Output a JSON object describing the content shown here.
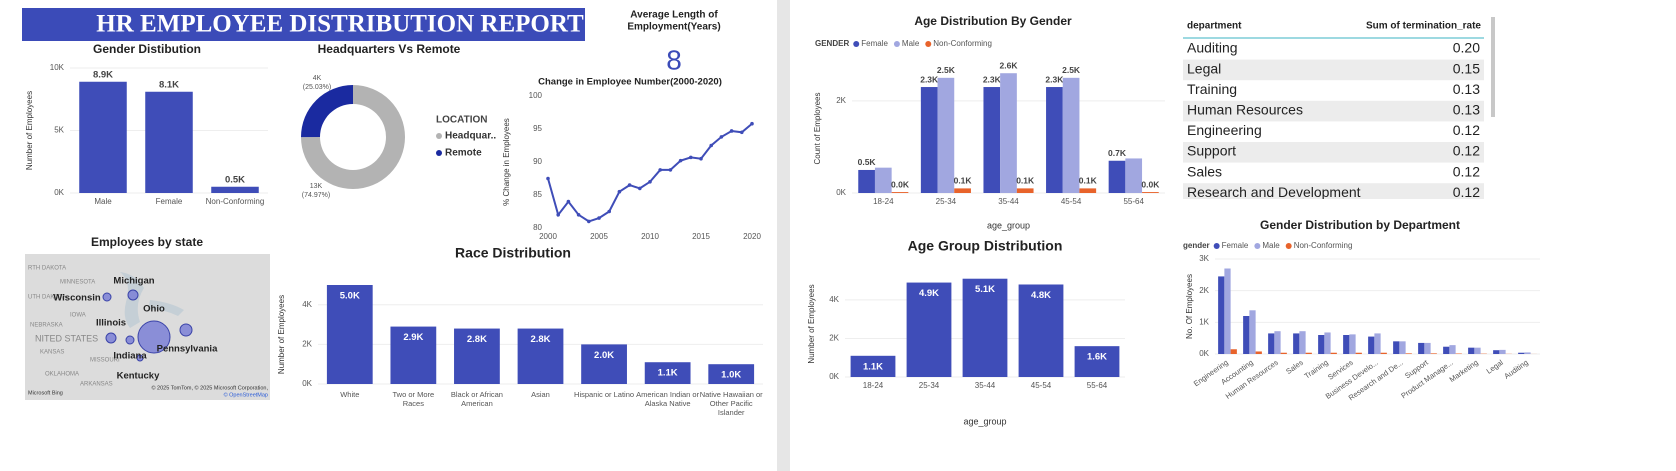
{
  "report_title": "HR EMPLOYEE DISTRIBUTION REPORT",
  "kpi": {
    "title_lines": [
      "Average Length of",
      "Employment(Years)"
    ],
    "value": 8
  },
  "map": {
    "title": "Employees by state",
    "region_labels": [
      "RTH DAKOTA",
      "MINNESOTA",
      "UTH DAKOTA",
      "NEBRASKA",
      "IOWA",
      "NITED STATES",
      "KANSAS",
      "MISSOURI",
      "OKLAHOMA",
      "ARKANSAS"
    ],
    "state_labels": [
      "Michigan",
      "Wisconsin",
      "Ohio",
      "Illinois",
      "Indiana",
      "Pennsylvania",
      "Kentucky"
    ],
    "attribution": "© 2025 TomTom, © 2025 Microsoft Corporation,",
    "osm": "© OpenStreetMap",
    "logo": "Microsoft Bing"
  },
  "table": {
    "header": [
      "department",
      "Sum of termination_rate"
    ],
    "rows": [
      [
        "Auditing",
        "0.20"
      ],
      [
        "Legal",
        "0.15"
      ],
      [
        "Training",
        "0.13"
      ],
      [
        "Human Resources",
        "0.13"
      ],
      [
        "Engineering",
        "0.12"
      ],
      [
        "Support",
        "0.12"
      ],
      [
        "Sales",
        "0.12"
      ],
      [
        "Research and Development",
        "0.12"
      ]
    ]
  },
  "chart_data": [
    {
      "type": "bar",
      "title": "Gender Distibution",
      "y_label": "Number of Employees",
      "categories": [
        "Male",
        "Female",
        "Non-Conforming"
      ],
      "values": [
        8900,
        8100,
        500
      ],
      "value_labels": [
        "8.9K",
        "8.1K",
        "0.5K"
      ],
      "color": "#3f4db8",
      "ylim": [
        0,
        10000
      ],
      "yticks": [
        {
          "value": 0,
          "label": "0K"
        },
        {
          "value": 5000,
          "label": "5K"
        },
        {
          "value": 10000,
          "label": "10K"
        }
      ],
      "grid": true
    },
    {
      "type": "donut",
      "title": "Headquarters Vs Remote",
      "legend_title": "LOCATION",
      "categories": [
        "Headquar..",
        "Remote"
      ],
      "values": [
        74.97,
        25.03
      ],
      "value_labels": [
        "(74.97%)",
        "(25.03%)"
      ],
      "count_labels": [
        "13K",
        "4K"
      ],
      "colors": [
        "#b3b3b3",
        "#1a2aa0"
      ]
    },
    {
      "type": "line",
      "title": "Change in Employee Number(2000-2020)",
      "y_label": "% Change in Employees",
      "x": [
        2000,
        2001,
        2002,
        2003,
        2004,
        2005,
        2006,
        2007,
        2008,
        2009,
        2010,
        2011,
        2012,
        2013,
        2014,
        2015,
        2016,
        2017,
        2018,
        2019,
        2020
      ],
      "values": [
        87.5,
        82,
        84,
        82,
        81,
        81.5,
        82.5,
        85.5,
        86.5,
        86,
        87,
        88.8,
        88.8,
        90.2,
        90.7,
        90.5,
        92.5,
        93.8,
        94.7,
        94.5,
        95.8
      ],
      "color": "#3f4db8",
      "xlim": [
        2000,
        2020
      ],
      "xticks": [
        2000,
        2005,
        2010,
        2015,
        2020
      ],
      "ylim": [
        80,
        100
      ],
      "yticks": [
        80,
        85,
        90,
        95,
        100
      ]
    },
    {
      "type": "bar",
      "title": "Race Distribution",
      "y_label": "Number of Employees",
      "categories": [
        "White",
        "Two or More Races",
        "Black or African American",
        "Asian",
        "Hispanic or Latino",
        "American Indian or Alaska Native",
        "Native Hawaiian or Other Pacific Islander"
      ],
      "values": [
        5000,
        2900,
        2800,
        2800,
        2000,
        1100,
        1000
      ],
      "value_labels": [
        "5.0K",
        "2.9K",
        "2.8K",
        "2.8K",
        "2.0K",
        "1.1K",
        "1.0K"
      ],
      "color": "#3f4db8",
      "ylim": [
        0,
        5000
      ],
      "yticks": [
        {
          "value": 0,
          "label": "0K"
        },
        {
          "value": 2000,
          "label": "2K"
        },
        {
          "value": 4000,
          "label": "4K"
        }
      ],
      "grid": true
    },
    {
      "type": "grouped_bar",
      "title": "Age Distribution By Gender",
      "legend_title": "GENDER",
      "x_label": "age_group",
      "y_label": "Count of Employees",
      "categories": [
        "18-24",
        "25-34",
        "35-44",
        "45-54",
        "55-64"
      ],
      "series": [
        {
          "name": "Female",
          "color": "#3f4db8",
          "values": [
            500,
            2300,
            2300,
            2300,
            700
          ],
          "value_labels": [
            "0.5K",
            "2.3K",
            "2.3K",
            "2.3K",
            "0.7K"
          ]
        },
        {
          "name": "Male",
          "color": "#a1a7e0",
          "values": [
            550,
            2500,
            2600,
            2500,
            750
          ],
          "value_labels": [
            null,
            "2.5K",
            "2.6K",
            "2.5K",
            null
          ]
        },
        {
          "name": "Non-Conforming",
          "color": "#e8632b",
          "values": [
            20,
            100,
            100,
            100,
            20
          ],
          "value_labels": [
            "0.0K",
            "0.1K",
            "0.1K",
            "0.1K",
            "0.0K"
          ]
        }
      ],
      "ylim": [
        0,
        2800
      ],
      "yticks": [
        {
          "value": 0,
          "label": "0K"
        },
        {
          "value": 2000,
          "label": "2K"
        }
      ],
      "grid": true
    },
    {
      "type": "bar",
      "title": "Age Group Distribution",
      "x_label": "age_group",
      "y_label": "Number of Employees",
      "categories": [
        "18-24",
        "25-34",
        "35-44",
        "45-54",
        "55-64"
      ],
      "values": [
        1100,
        4900,
        5100,
        4800,
        1600
      ],
      "value_labels": [
        "1.1K",
        "4.9K",
        "5.1K",
        "4.8K",
        "1.6K"
      ],
      "color": "#3f4db8",
      "ylim": [
        0,
        5500
      ],
      "yticks": [
        {
          "value": 0,
          "label": "0K"
        },
        {
          "value": 2000,
          "label": "2K"
        },
        {
          "value": 4000,
          "label": "4K"
        }
      ],
      "grid": true
    },
    {
      "type": "grouped_bar",
      "title": "Gender Distribution by Department",
      "legend_title": "gender",
      "y_label": "No. Of Employees",
      "categories": [
        "Engineering",
        "Accounting",
        "Human Resources",
        "Sales",
        "Training",
        "Services",
        "Business Develo...",
        "Research and De...",
        "Support",
        "Product Manage...",
        "Marketing",
        "Legal",
        "Auditing"
      ],
      "series": [
        {
          "name": "Female",
          "color": "#3f4db8",
          "values": [
            2450,
            1200,
            650,
            650,
            600,
            600,
            550,
            400,
            350,
            230,
            200,
            120,
            40
          ]
        },
        {
          "name": "Male",
          "color": "#a1a7e0",
          "values": [
            2700,
            1380,
            720,
            720,
            680,
            620,
            650,
            400,
            350,
            280,
            200,
            130,
            50
          ]
        },
        {
          "name": "Non-Conforming",
          "color": "#e8632b",
          "values": [
            150,
            80,
            40,
            40,
            40,
            40,
            40,
            20,
            20,
            15,
            10,
            5,
            2
          ]
        }
      ],
      "ylim": [
        0,
        3000
      ],
      "yticks": [
        {
          "value": 0,
          "label": "0K"
        },
        {
          "value": 1000,
          "label": "1K"
        },
        {
          "value": 2000,
          "label": "2K"
        },
        {
          "value": 3000,
          "label": "3K"
        }
      ],
      "grid": true
    }
  ]
}
